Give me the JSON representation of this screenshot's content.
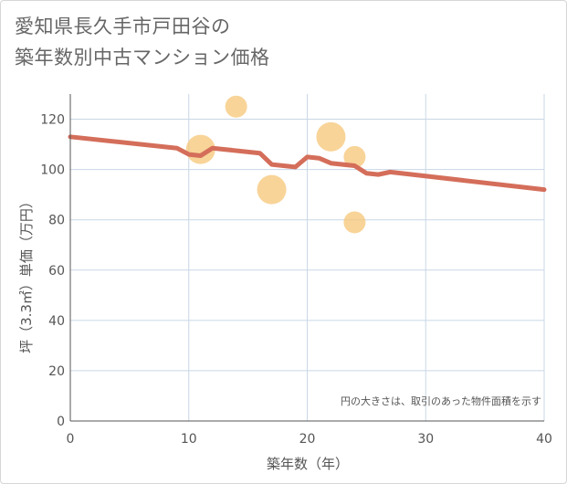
{
  "title": {
    "line1": "愛知県長久手市戸田谷の",
    "line2": "築年数別中古マンション価格"
  },
  "colors": {
    "line": "#d46e5a",
    "bubble": "#f5c576",
    "grid": "#c9d7e6",
    "axis": "#555555"
  },
  "chart_data": {
    "type": "scatter",
    "xlabel": "築年数（年）",
    "ylabel": "坪（3.3㎡）単価（万円）",
    "xlim": [
      0,
      40
    ],
    "ylim": [
      0,
      130
    ],
    "x_ticks": [
      0,
      10,
      20,
      30,
      40
    ],
    "y_ticks": [
      0,
      20,
      40,
      60,
      80,
      100,
      120
    ],
    "grid": true,
    "note": "円の大きさは、取引のあった物件面積を示す",
    "bubbles": [
      {
        "x": 11,
        "y": 108,
        "size": 3
      },
      {
        "x": 14,
        "y": 125,
        "size": 2
      },
      {
        "x": 17,
        "y": 92,
        "size": 3
      },
      {
        "x": 22,
        "y": 113,
        "size": 3
      },
      {
        "x": 24,
        "y": 105,
        "size": 2
      },
      {
        "x": 24,
        "y": 79,
        "size": 2
      }
    ],
    "trend": {
      "x": [
        0,
        9,
        10,
        11,
        12,
        16,
        17,
        19,
        20,
        21,
        22,
        24,
        25,
        26,
        27,
        40
      ],
      "y": [
        113,
        108.5,
        106,
        105.5,
        108.5,
        106.5,
        102,
        101,
        105,
        104.5,
        102.5,
        101.5,
        98.5,
        98,
        99,
        92
      ]
    }
  }
}
